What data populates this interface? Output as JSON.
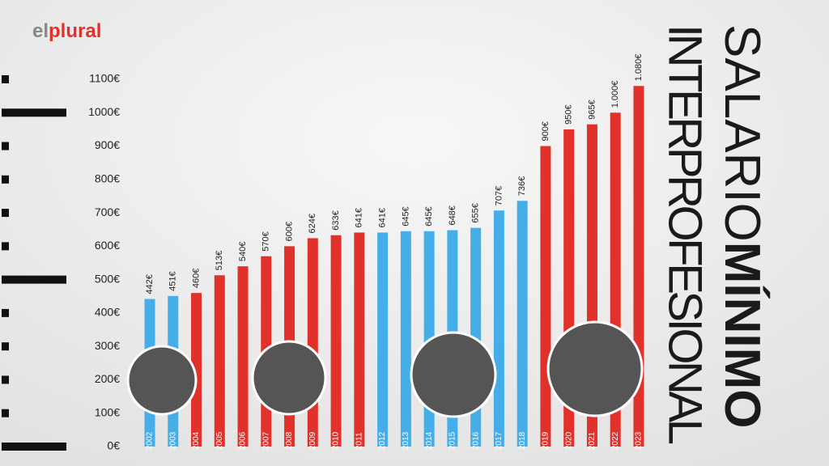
{
  "logo": [
    "el",
    "plural"
  ],
  "chart_data": {
    "type": "bar",
    "title": "SALARIO",
    "title_bold": "MÍNIMO",
    "subtitle": "INTERPROFESIONAL",
    "categories": [
      "2002",
      "2003",
      "2004",
      "2005",
      "2006",
      "2007",
      "2008",
      "2009",
      "2010",
      "2011",
      "2012",
      "2013",
      "2014",
      "2015",
      "2016",
      "2017",
      "2018",
      "2019",
      "2020",
      "2021",
      "2022",
      "2023"
    ],
    "values": [
      442,
      451,
      460,
      513,
      540,
      570,
      600,
      624,
      633,
      641,
      641,
      645,
      645,
      648,
      655,
      707,
      736,
      900,
      950,
      965,
      1000,
      1080
    ],
    "value_labels": [
      "442€",
      "451€",
      "460€",
      "513€",
      "540€",
      "570€",
      "600€",
      "624€",
      "633€",
      "641€",
      "641€",
      "645€",
      "645€",
      "648€",
      "655€",
      "707€",
      "736€",
      "900€",
      "950€",
      "965€",
      "1.000€",
      "1.080€"
    ],
    "colors": [
      "#45aee8",
      "#45aee8",
      "#e0322a",
      "#e0322a",
      "#e0322a",
      "#e0322a",
      "#e0322a",
      "#e0322a",
      "#e0322a",
      "#e0322a",
      "#45aee8",
      "#45aee8",
      "#45aee8",
      "#45aee8",
      "#45aee8",
      "#45aee8",
      "#45aee8",
      "#e0322a",
      "#e0322a",
      "#e0322a",
      "#e0322a",
      "#e0322a"
    ],
    "ylim": [
      0,
      1100
    ],
    "yticks": [
      {
        "value": 0,
        "label": "0€"
      },
      {
        "value": 100,
        "label": "100€"
      },
      {
        "value": 200,
        "label": "200€"
      },
      {
        "value": 300,
        "label": "300€"
      },
      {
        "value": 400,
        "label": "400€"
      },
      {
        "value": 500,
        "label": "500€"
      },
      {
        "value": 600,
        "label": "600€"
      },
      {
        "value": 700,
        "label": "700€"
      },
      {
        "value": 800,
        "label": "800€"
      },
      {
        "value": 900,
        "label": "900€"
      },
      {
        "value": 1000,
        "label": "1000€"
      },
      {
        "value": 1100,
        "label": "1100€"
      }
    ]
  }
}
